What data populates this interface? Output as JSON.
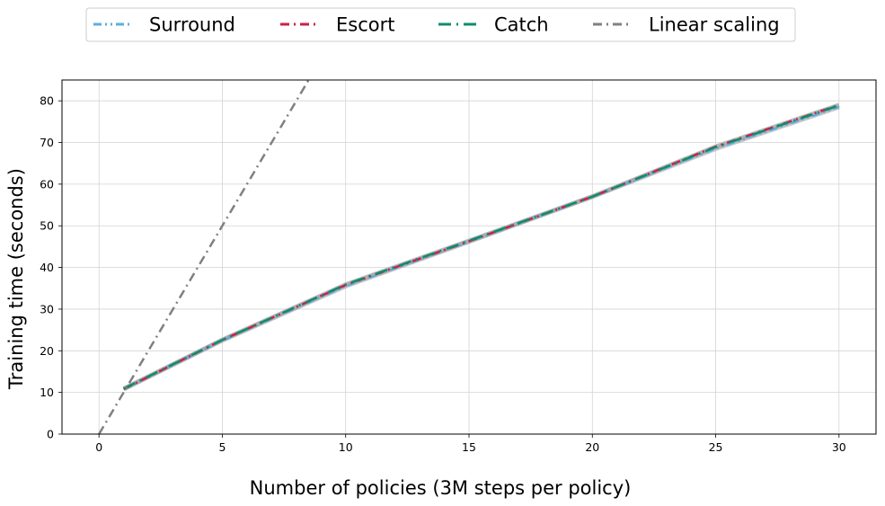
{
  "chart_data": {
    "type": "line",
    "title": "",
    "xlabel": "Number of policies (3M steps per policy)",
    "ylabel": "Training time (seconds)",
    "xlim": [
      -1.5,
      31.5
    ],
    "ylim": [
      0,
      85
    ],
    "xticks": [
      0,
      5,
      10,
      15,
      20,
      25,
      30
    ],
    "yticks": [
      0,
      10,
      20,
      30,
      40,
      50,
      60,
      70,
      80
    ],
    "grid": true,
    "legend_position": "top-center",
    "x": [
      1,
      5,
      10,
      15,
      20,
      25,
      30
    ],
    "series": [
      {
        "name": "Surround",
        "color": "#5DADE2",
        "dash": "dash-dot-dot",
        "values": [
          10.8,
          22.5,
          35.5,
          46.2,
          57.0,
          68.5,
          78.5
        ]
      },
      {
        "name": "Escort",
        "color": "#CC1F4C",
        "dash": "dash-dot",
        "values": [
          10.8,
          22.6,
          35.8,
          46.3,
          57.0,
          69.0,
          79.0
        ]
      },
      {
        "name": "Catch",
        "color": "#0E8C6B",
        "dash": "long-dash-dot",
        "values": [
          10.9,
          22.6,
          35.9,
          46.4,
          57.0,
          68.9,
          78.9
        ]
      },
      {
        "name": "Linear scaling",
        "color": "#808080",
        "dash": "dash-dot",
        "x": [
          0,
          10
        ],
        "values": [
          0,
          100
        ]
      }
    ]
  }
}
